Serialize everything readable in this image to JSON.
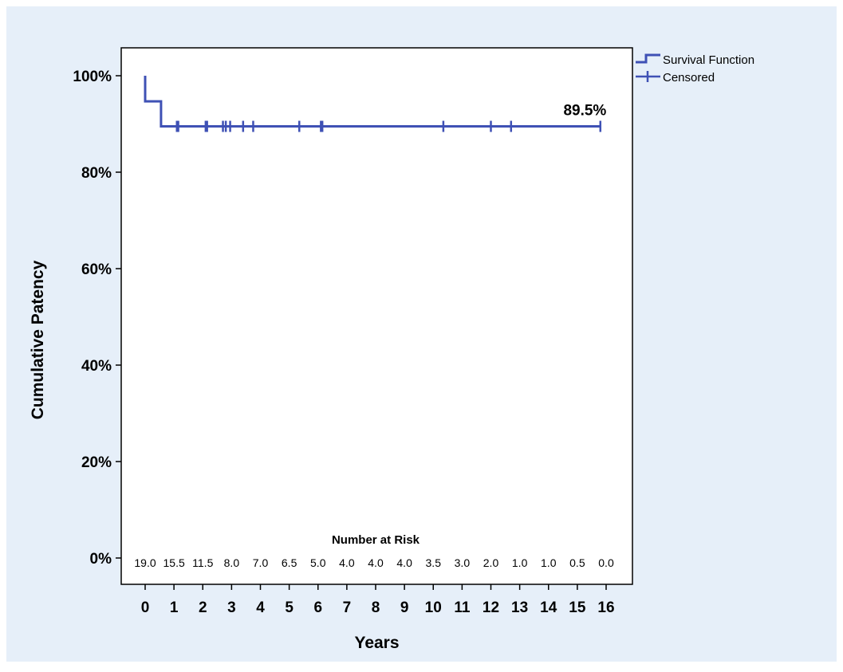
{
  "chart_data": {
    "type": "line",
    "subtype": "kaplan-meier",
    "title": "",
    "xlabel": "Years",
    "ylabel": "Cumulative Patency",
    "xlim": [
      0,
      16
    ],
    "ylim": [
      0,
      100
    ],
    "x_ticks": [
      "0",
      "1",
      "2",
      "3",
      "4",
      "5",
      "6",
      "7",
      "8",
      "9",
      "10",
      "11",
      "12",
      "13",
      "14",
      "15",
      "16"
    ],
    "y_ticks": [
      "0%",
      "20%",
      "40%",
      "60%",
      "80%",
      "100%"
    ],
    "series": [
      {
        "name": "Survival Function",
        "color": "#3F51B5",
        "steps": [
          {
            "x": 0,
            "y": 100
          },
          {
            "x": 0.0,
            "y": 94.7
          },
          {
            "x": 0.55,
            "y": 94.7
          },
          {
            "x": 0.55,
            "y": 89.5
          },
          {
            "x": 15.8,
            "y": 89.5
          }
        ]
      },
      {
        "name": "Censored",
        "color": "#3F51B5",
        "points": [
          {
            "x": 1.1,
            "y": 89.5
          },
          {
            "x": 1.15,
            "y": 89.5
          },
          {
            "x": 2.1,
            "y": 89.5
          },
          {
            "x": 2.15,
            "y": 89.5
          },
          {
            "x": 2.7,
            "y": 89.5
          },
          {
            "x": 2.8,
            "y": 89.5
          },
          {
            "x": 2.95,
            "y": 89.5
          },
          {
            "x": 3.4,
            "y": 89.5
          },
          {
            "x": 3.75,
            "y": 89.5
          },
          {
            "x": 5.35,
            "y": 89.5
          },
          {
            "x": 6.1,
            "y": 89.5
          },
          {
            "x": 6.15,
            "y": 89.5
          },
          {
            "x": 10.35,
            "y": 89.5
          },
          {
            "x": 12.0,
            "y": 89.5
          },
          {
            "x": 12.7,
            "y": 89.5
          },
          {
            "x": 15.8,
            "y": 89.5
          }
        ]
      }
    ],
    "annotation": {
      "text": "89.5%",
      "x": 15.4,
      "y": 89.5
    },
    "risk_table": {
      "title": "Number at Risk",
      "values": [
        "19.0",
        "15.5",
        "11.5",
        "8.0",
        "7.0",
        "6.5",
        "5.0",
        "4.0",
        "4.0",
        "4.0",
        "3.5",
        "3.0",
        "2.0",
        "1.0",
        "1.0",
        "0.5",
        "0.0"
      ]
    },
    "legend": {
      "placement": "top-right outside",
      "entries": [
        "Survival Function",
        "Censored"
      ]
    },
    "grid": false,
    "colors": {
      "background": "#E6EFF9",
      "plot_area": "#FFFFFF",
      "line": "#3F51B5"
    }
  }
}
